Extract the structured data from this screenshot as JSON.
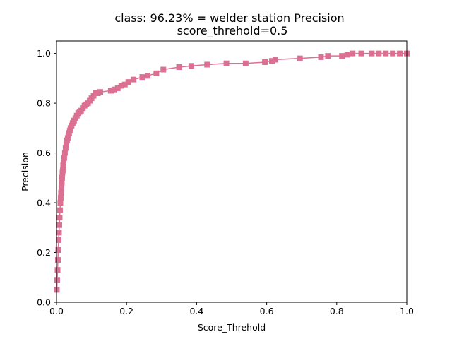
{
  "chart_data": {
    "type": "line",
    "title_lines": [
      "class: 96.23% = welder station Precision",
      "score_threhold=0.5"
    ],
    "xlabel": "Score_Threhold",
    "ylabel": "Precision",
    "xlim": [
      0.0,
      1.0
    ],
    "ylim": [
      0.0,
      1.05
    ],
    "xticks": [
      "0.0",
      "0.2",
      "0.4",
      "0.6",
      "0.8",
      "1.0"
    ],
    "yticks": [
      "0.0",
      "0.2",
      "0.4",
      "0.6",
      "0.8",
      "1.0"
    ],
    "grid": false,
    "legend": "none",
    "marker": "square",
    "color": "#db7093",
    "series": [
      {
        "x": [
          0.001,
          0.002,
          0.003,
          0.004,
          0.005,
          0.006,
          0.007,
          0.008,
          0.009,
          0.01,
          0.011,
          0.012,
          0.013,
          0.014,
          0.015,
          0.016,
          0.017,
          0.018,
          0.019,
          0.02,
          0.022,
          0.024,
          0.026,
          0.028,
          0.03,
          0.032,
          0.034,
          0.036,
          0.038,
          0.04,
          0.043,
          0.046,
          0.05,
          0.054,
          0.058,
          0.062,
          0.066,
          0.07,
          0.075,
          0.08,
          0.085,
          0.09,
          0.095,
          0.1,
          0.106,
          0.112,
          0.118,
          0.125,
          0.155,
          0.165,
          0.175,
          0.185,
          0.195,
          0.205,
          0.22,
          0.245,
          0.26,
          0.285,
          0.305,
          0.35,
          0.385,
          0.43,
          0.485,
          0.54,
          0.595,
          0.615,
          0.625,
          0.695,
          0.755,
          0.775,
          0.815,
          0.83,
          0.845,
          0.87,
          0.9,
          0.92,
          0.94,
          0.96,
          0.98,
          1.0
        ],
        "y": [
          0.05,
          0.09,
          0.13,
          0.17,
          0.21,
          0.25,
          0.28,
          0.31,
          0.34,
          0.37,
          0.4,
          0.42,
          0.44,
          0.46,
          0.48,
          0.5,
          0.52,
          0.53,
          0.55,
          0.56,
          0.58,
          0.6,
          0.62,
          0.635,
          0.65,
          0.66,
          0.67,
          0.68,
          0.69,
          0.7,
          0.71,
          0.72,
          0.73,
          0.74,
          0.75,
          0.76,
          0.765,
          0.77,
          0.78,
          0.79,
          0.795,
          0.8,
          0.81,
          0.82,
          0.83,
          0.84,
          0.84,
          0.845,
          0.85,
          0.855,
          0.86,
          0.87,
          0.875,
          0.885,
          0.895,
          0.905,
          0.91,
          0.92,
          0.935,
          0.945,
          0.95,
          0.955,
          0.96,
          0.96,
          0.965,
          0.97,
          0.975,
          0.98,
          0.985,
          0.99,
          0.99,
          0.995,
          1.0,
          1.0,
          1.0,
          1.0,
          1.0,
          1.0,
          1.0,
          1.0
        ]
      }
    ]
  }
}
